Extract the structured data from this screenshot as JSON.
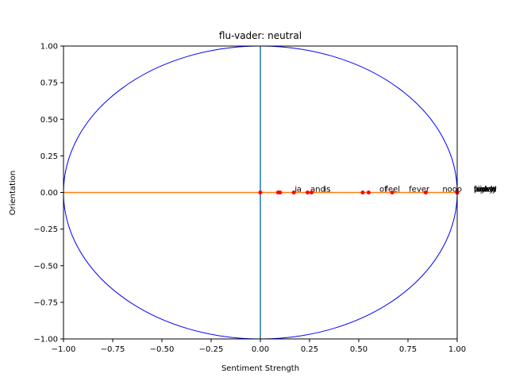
{
  "chart_data": {
    "type": "scatter",
    "title": "flu-vader: neutral",
    "xlabel": "Sentiment Strength",
    "ylabel": "Orientation",
    "xlim": [
      -1.0,
      1.0
    ],
    "ylim": [
      -1.0,
      1.0
    ],
    "x_ticks": [
      "−1.00",
      "−0.75",
      "−0.50",
      "−0.25",
      "0.00",
      "0.25",
      "0.50",
      "0.75",
      "1.00"
    ],
    "y_ticks": [
      "−1.00",
      "−0.75",
      "−0.50",
      "−0.25",
      "0.00",
      "0.25",
      "0.50",
      "0.75",
      "1.00"
    ],
    "grid": false,
    "reference_lines": [
      {
        "orientation": "vertical",
        "at": 0.0,
        "color": "#1f77b4"
      },
      {
        "orientation": "horizontal",
        "at": 0.0,
        "color": "#ff7f0e"
      }
    ],
    "unit_circle": {
      "color": "#0000ff"
    },
    "marker_color": "#ff0000",
    "points": [
      {
        "label": "",
        "x": 0.0,
        "y": 0.0
      },
      {
        "label": "i",
        "x": 0.09,
        "y": 0.0
      },
      {
        "label": "a",
        "x": 0.1,
        "y": 0.0
      },
      {
        "label": "and",
        "x": 0.17,
        "y": 0.0
      },
      {
        "label": "is",
        "x": 0.24,
        "y": 0.0
      },
      {
        "label": ".",
        "x": 0.26,
        "y": 0.0
      },
      {
        "label": "of",
        "x": 0.52,
        "y": 0.0
      },
      {
        "label": "feel",
        "x": 0.55,
        "y": 0.0
      },
      {
        "label": "fever",
        "x": 0.67,
        "y": 0.0
      },
      {
        "label": "nooo",
        "x": 0.84,
        "y": 0.0
      },
      {
        "label": "found",
        "x": 1.0,
        "y": 0.0
      },
      {
        "label": "friday",
        "x": 1.0,
        "y": 0.0
      },
      {
        "label": "right",
        "x": 1.0,
        "y": 0.0
      },
      {
        "label": "worst",
        "x": 1.0,
        "y": 0.0
      },
      {
        "label": "lunch",
        "x": 1.0,
        "y": 0.0
      },
      {
        "label": "home",
        "x": 1.0,
        "y": 0.0
      },
      {
        "label": "pissy",
        "x": 1.0,
        "y": 0.0
      }
    ]
  }
}
